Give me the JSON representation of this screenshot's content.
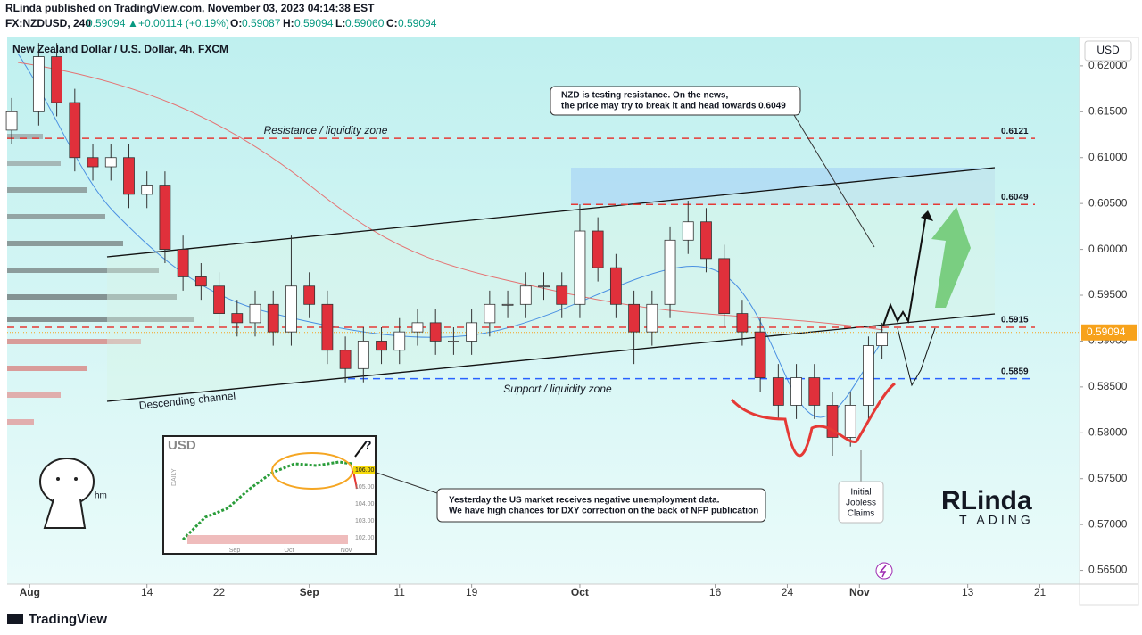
{
  "header": {
    "publisher": "RLinda published on TradingView.com, November 03, 2023 04:14:38 EST",
    "symbol": "FX:NZDUSD, 240",
    "price": "0.59094",
    "arrow": "▲",
    "change": "+0.00114 (+0.19%)",
    "o_label": "O:",
    "o": "0.59087",
    "h_label": "H:",
    "h": "0.59094",
    "l_label": "L:",
    "l": "0.59060",
    "c_label": "C:",
    "c": "0.59094"
  },
  "currency_button": "USD",
  "footer": "TradingView",
  "logo": {
    "name": "RLinda",
    "sub": "T ADING"
  },
  "chart_data": {
    "type": "candlestick",
    "title": "New Zealand Dollar / U.S. Dollar, 4h, FXCM",
    "x": [
      -2,
      1,
      3,
      5,
      7,
      9,
      11,
      13,
      15,
      17,
      19,
      21,
      23,
      25,
      27,
      29,
      31,
      33,
      35,
      37,
      39,
      41,
      43,
      45,
      47,
      49,
      51,
      53,
      55,
      57,
      59,
      61,
      63,
      65,
      67,
      69,
      71,
      73,
      75,
      77,
      79,
      81,
      83,
      85,
      87,
      89,
      91,
      93,
      94.5
    ],
    "open": [
      0.613,
      0.615,
      0.621,
      0.616,
      0.61,
      0.609,
      0.61,
      0.606,
      0.607,
      0.6,
      0.597,
      0.596,
      0.593,
      0.592,
      0.594,
      0.591,
      0.596,
      0.594,
      0.589,
      0.587,
      0.59,
      0.589,
      0.591,
      0.592,
      0.59,
      0.59,
      0.592,
      0.594,
      0.594,
      0.596,
      0.596,
      0.594,
      0.602,
      0.598,
      0.594,
      0.591,
      0.594,
      0.601,
      0.603,
      0.599,
      0.593,
      0.591,
      0.586,
      0.583,
      0.586,
      0.583,
      0.5795,
      0.583,
      0.5895
    ],
    "high": [
      0.6165,
      0.6225,
      0.6225,
      0.6175,
      0.6115,
      0.6115,
      0.6115,
      0.6085,
      0.6085,
      0.6015,
      0.5985,
      0.5975,
      0.5945,
      0.5955,
      0.5955,
      0.6015,
      0.5975,
      0.5955,
      0.5905,
      0.5915,
      0.5915,
      0.5925,
      0.5935,
      0.5935,
      0.5915,
      0.5935,
      0.5955,
      0.5955,
      0.5975,
      0.5975,
      0.5975,
      0.6049,
      0.6035,
      0.5995,
      0.5955,
      0.5955,
      0.6025,
      0.6053,
      0.6045,
      0.6005,
      0.5945,
      0.5925,
      0.5875,
      0.5875,
      0.5875,
      0.5845,
      0.5845,
      0.5905,
      0.592
    ],
    "low": [
      0.6115,
      0.6135,
      0.6145,
      0.6085,
      0.6075,
      0.6075,
      0.6045,
      0.6045,
      0.5985,
      0.5955,
      0.5945,
      0.5915,
      0.5905,
      0.5905,
      0.5895,
      0.5895,
      0.5925,
      0.5875,
      0.5855,
      0.5855,
      0.5875,
      0.5875,
      0.5895,
      0.5885,
      0.5885,
      0.5885,
      0.5905,
      0.5925,
      0.5925,
      0.5945,
      0.5925,
      0.5925,
      0.5965,
      0.5925,
      0.5875,
      0.5895,
      0.5925,
      0.5995,
      0.5975,
      0.5915,
      0.5895,
      0.5845,
      0.5815,
      0.5815,
      0.5815,
      0.5775,
      0.5785,
      0.5815,
      0.588
    ],
    "close": [
      0.615,
      0.621,
      0.616,
      0.61,
      0.609,
      0.61,
      0.606,
      0.607,
      0.6,
      0.597,
      0.596,
      0.593,
      0.592,
      0.594,
      0.591,
      0.596,
      0.594,
      0.589,
      0.587,
      0.59,
      0.589,
      0.591,
      0.592,
      0.59,
      0.59,
      0.592,
      0.594,
      0.594,
      0.596,
      0.596,
      0.594,
      0.602,
      0.598,
      0.594,
      0.591,
      0.594,
      0.601,
      0.603,
      0.599,
      0.593,
      0.591,
      0.586,
      0.583,
      0.586,
      0.583,
      0.5795,
      0.583,
      0.5895,
      0.59094
    ],
    "up_color": "#ffffff",
    "down_color": "#e0303b",
    "xlim": [
      -2.5,
      116.4
    ],
    "ylim": [
      0.5635,
      0.6231
    ],
    "xticks": [
      {
        "value": 0,
        "label": "Aug"
      },
      {
        "value": 13,
        "label": "14"
      },
      {
        "value": 21,
        "label": "22"
      },
      {
        "value": 31,
        "label": "Sep"
      },
      {
        "value": 41,
        "label": "11"
      },
      {
        "value": 49,
        "label": "19"
      },
      {
        "value": 61,
        "label": "Oct"
      },
      {
        "value": 76,
        "label": "16"
      },
      {
        "value": 84,
        "label": "24"
      },
      {
        "value": 92,
        "label": "Nov"
      },
      {
        "value": 104,
        "label": "13"
      },
      {
        "value": 112,
        "label": "21"
      }
    ],
    "yticks": [
      {
        "value": 0.565,
        "label": "0.56500"
      },
      {
        "value": 0.57,
        "label": "0.57000"
      },
      {
        "value": 0.575,
        "label": "0.57500"
      },
      {
        "value": 0.58,
        "label": "0.58000"
      },
      {
        "value": 0.585,
        "label": "0.58500"
      },
      {
        "value": 0.59,
        "label": "0.59000"
      },
      {
        "value": 0.595,
        "label": "0.59500"
      },
      {
        "value": 0.6,
        "label": "0.60000"
      },
      {
        "value": 0.605,
        "label": "0.60500"
      },
      {
        "value": 0.61,
        "label": "0.61000"
      },
      {
        "value": 0.615,
        "label": "0.61500"
      },
      {
        "value": 0.62,
        "label": "0.62000"
      }
    ],
    "levels": [
      0.6121,
      0.6049,
      0.5915,
      0.5859
    ],
    "level_colors": [
      "#e53935",
      "#e53935",
      "#e53935",
      "#2962ff"
    ],
    "last_price": 0.59094,
    "last_price_color": "#f7a21b",
    "annotations": {
      "resistance": "Resistance / liquidity zone",
      "support": "Support / liquidity zone",
      "channel": "Descending channel",
      "callout1_line1": "NZD is testing resistance. On the news,",
      "callout1_line2": "the price may try to break it and head towards 0.6049",
      "callout2_line1": "Yesterday the US market receives negative unemployment data.",
      "callout2_line2": "We have high chances for DXY correction on the back of NFP publication",
      "event1": "Initial",
      "event2": "Jobless",
      "event3": "Claims",
      "mascot": "hm"
    }
  },
  "inset": {
    "title": "USD",
    "side": "DAILY",
    "price_tag": "106.00",
    "levels": [
      "105.00",
      "104.00",
      "103.00",
      "102.00"
    ],
    "months": [
      "Sep",
      "Oct",
      "Nov"
    ],
    "question": "?"
  }
}
